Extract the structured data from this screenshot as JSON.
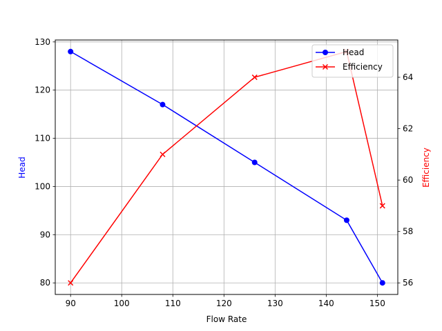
{
  "chart_data": {
    "type": "line",
    "title": "",
    "xlabel": "Flow Rate",
    "ylabel": "Head",
    "ylabel_right": "Efficiency",
    "x": [
      90,
      108,
      126,
      144,
      151
    ],
    "series": [
      {
        "name": "Head",
        "axis": "left",
        "color": "#0000ff",
        "marker": "circle",
        "values": [
          128,
          117,
          105,
          93,
          80
        ]
      },
      {
        "name": "Efficiency",
        "axis": "right",
        "color": "#ff0000",
        "marker": "x",
        "values": [
          56,
          61,
          64,
          65,
          59
        ]
      }
    ],
    "xlim": [
      87,
      154
    ],
    "ylim": [
      77.6,
      130.4
    ],
    "ylim_right": [
      55.55,
      65.45
    ],
    "xticks": [
      90,
      100,
      110,
      120,
      130,
      140,
      150
    ],
    "yticks": [
      80,
      90,
      100,
      110,
      120,
      130
    ],
    "yticks_right": [
      56,
      58,
      60,
      62,
      64
    ],
    "grid": true,
    "legend_position": "upper right"
  }
}
